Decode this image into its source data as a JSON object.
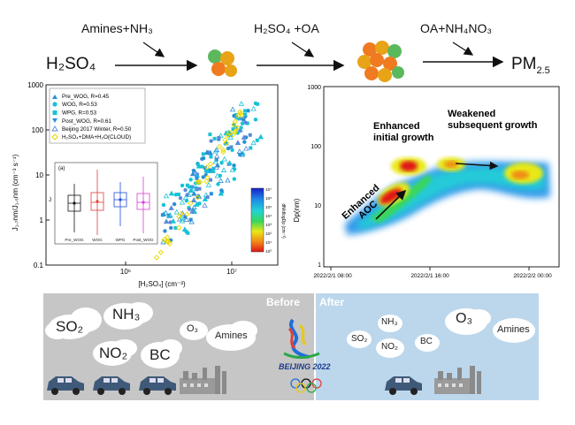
{
  "pathway": {
    "reactant_start": "H₂SO₄",
    "step1_label": "Amines+NH₃",
    "step2_label": "H₂SO₄ +OA",
    "step3_label": "OA+NH₄NO₃",
    "product": "PM",
    "product_sub": "2.5"
  },
  "left_chart": {
    "ylabel": "J₁.₇nm/J₁.₅nm (cm⁻³ s⁻¹)",
    "xlabel": "[H₂SO₄] (cm⁻³)",
    "yticks": [
      "1000",
      "100",
      "10",
      "1",
      "0.1"
    ],
    "xticks": [
      "10⁶",
      "10⁷"
    ],
    "legend": [
      {
        "label": "Pre_WOG, R=0.45",
        "color": "#2a8fd6"
      },
      {
        "label": "WOG, R=0.53",
        "color": "#17c2d6"
      },
      {
        "label": "WPG, R=0.53",
        "color": "#17c2d6"
      },
      {
        "label": "Post_WOG, R=0.61",
        "color": "#2a8fd6"
      },
      {
        "label": "Beijing 2017 Winter, R=0.50",
        "color": "#5a8ad9"
      },
      {
        "label": "H₂SO₄+DMA+H₂O(CLOUD)",
        "color": "#e8d800"
      }
    ],
    "inset": {
      "tag": "(a)",
      "ylabel": "J",
      "categories": [
        "Pre_WOG",
        "WOG",
        "WPG",
        "Post_WOG"
      ],
      "box_colors": [
        "#111111",
        "#e0403a",
        "#1f4fd6",
        "#d63fd6"
      ]
    },
    "colorbar": {
      "ticks": [
        "10⁷",
        "10⁶",
        "10⁵",
        "10⁴",
        "10³",
        "10²",
        "10¹",
        "10⁰"
      ],
      "label": "dN/dlogDp (cm⁻³)"
    }
  },
  "right_chart": {
    "ylabel": "Dp(nm)",
    "yticks": [
      "1000",
      "100",
      "10",
      "1"
    ],
    "xticks": [
      "2022/2/1 08:00",
      "2022/2/1 16:00",
      "2022/2/2 00:00"
    ],
    "annotation_aoc": "Enhanced\nAOC",
    "annotation_initial": "Enhanced\ninitial growth",
    "annotation_subsequent": "Weakened\nsubsequent growth"
  },
  "bottom_panel": {
    "before_label": "Before",
    "after_label": "After",
    "left_gases": [
      {
        "text": "SO₂"
      },
      {
        "text": "NH₃"
      },
      {
        "text": "O₃"
      },
      {
        "text": "Amines"
      },
      {
        "text": "NO₂"
      },
      {
        "text": "BC"
      }
    ],
    "right_gases": [
      {
        "text": "NH₃"
      },
      {
        "text": "O₃"
      },
      {
        "text": "Amines"
      },
      {
        "text": "SO₂"
      },
      {
        "text": "NO₂"
      },
      {
        "text": "BC"
      }
    ],
    "logo_text": "BEIJING 2022",
    "colors": {
      "before_bg": "#c6c6c6",
      "after_bg": "#bcd7ec"
    }
  }
}
